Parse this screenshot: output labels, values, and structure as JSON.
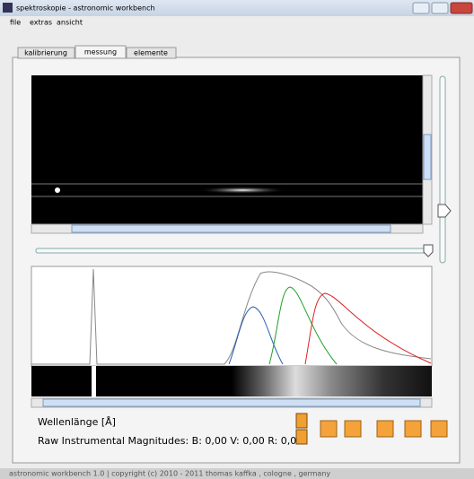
{
  "window": {
    "title": "spektroskopie - astronomic workbench"
  },
  "menu": [
    "file",
    "extras",
    "ansicht"
  ],
  "tabs": [
    "kalibrierung",
    "messung",
    "elemente"
  ],
  "labels": {
    "wavelength": "Wellenlänge [Å]",
    "magnitudes": "Raw Instrumental Magnitudes: B: 0,00 V: 0,00 R: 0,00"
  },
  "status": "astronomic workbench 1.0 | copyright (c) 2010 - 2011 thomas kaffka , cologne , germany"
}
